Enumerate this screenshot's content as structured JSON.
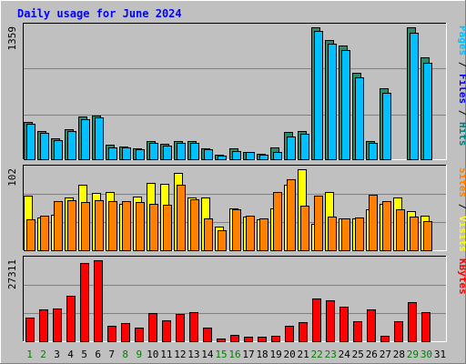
{
  "chart_data": {
    "type": "bar",
    "title": "Daily usage for June 2024",
    "x": [
      "1",
      "2",
      "3",
      "4",
      "5",
      "6",
      "7",
      "8",
      "9",
      "10",
      "11",
      "12",
      "13",
      "14",
      "15",
      "16",
      "17",
      "18",
      "19",
      "20",
      "21",
      "22",
      "23",
      "24",
      "25",
      "26",
      "27",
      "28",
      "29",
      "30",
      "31"
    ],
    "weekend_days": [
      "1",
      "2",
      "8",
      "9",
      "15",
      "16",
      "22",
      "23",
      "29",
      "30"
    ],
    "panels": [
      {
        "id": "top",
        "ymax_label": "1359",
        "ymax": 1359,
        "axis_label_parts": [
          {
            "text": "Pages",
            "color": "#00c0ff"
          },
          {
            "text": " / ",
            "color": "#000000"
          },
          {
            "text": "Files",
            "color": "#0000ff"
          },
          {
            "text": " / ",
            "color": "#000000"
          },
          {
            "text": "Hits",
            "color": "#008080"
          }
        ],
        "series": [
          {
            "name": "Hits",
            "color": "#2d8b6b",
            "values": [
              384,
              287,
              219,
              308,
              436,
              450,
              148,
              132,
              112,
              185,
              160,
              185,
              184,
              117,
              45,
              110,
              77,
              55,
              125,
              278,
              292,
              1359,
              1232,
              1174,
              886,
              191,
              730,
              0,
              1359,
              1049,
              0
            ]
          },
          {
            "name": "Files",
            "color": "#00c0ff",
            "values": [
              364,
              270,
              201,
              289,
              414,
              428,
              126,
              119,
              101,
              166,
              144,
              167,
              165,
              104,
              39,
              82,
              71,
              50,
              77,
              233,
              260,
              1325,
              1188,
              1128,
              848,
              165,
              687,
              0,
              1304,
              992,
              0
            ]
          }
        ]
      },
      {
        "id": "mid",
        "ymax_label": "102",
        "ymax": 102,
        "axis_label_parts": [
          {
            "text": "Sites",
            "color": "#ff8000"
          },
          {
            "text": " / ",
            "color": "#000000"
          },
          {
            "text": "Visits",
            "color": "#ffff00"
          }
        ],
        "series": [
          {
            "name": "Visits",
            "color": "#ffff00",
            "values": [
              69,
              41,
              45,
              66,
              82,
              72,
              73,
              58,
              68,
              85,
              84,
              97,
              67,
              67,
              30,
              53,
              42,
              39,
              53,
              82,
              102,
              33,
              73,
              40,
              40,
              51,
              59,
              66,
              49,
              44,
              0
            ]
          },
          {
            "name": "Sites",
            "color": "#ff8000",
            "values": [
              39,
              43,
              62,
              63,
              61,
              63,
              62,
              62,
              61,
              58,
              57,
              82,
              64,
              40,
              25,
              52,
              43,
              40,
              73,
              89,
              56,
              69,
              42,
              40,
              41,
              70,
              62,
              52,
              42,
              37,
              0
            ]
          }
        ]
      },
      {
        "id": "bot",
        "ymax_label": "27311",
        "ymax": 27311,
        "axis_label_parts": [
          {
            "text": "KBytes",
            "color": "#ff0000"
          }
        ],
        "series": [
          {
            "name": "KBytes",
            "color": "#ff0000",
            "values": [
              7868,
              10713,
              11175,
              15317,
              26408,
              27311,
              5333,
              6197,
              4614,
              9513,
              7162,
              9095,
              9812,
              4493,
              944,
              2035,
              1664,
              1385,
              1871,
              5215,
              6444,
              14456,
              13856,
              11599,
              6771,
              10639,
              1818,
              6869,
              13207,
              9852,
              0
            ]
          }
        ]
      }
    ]
  }
}
